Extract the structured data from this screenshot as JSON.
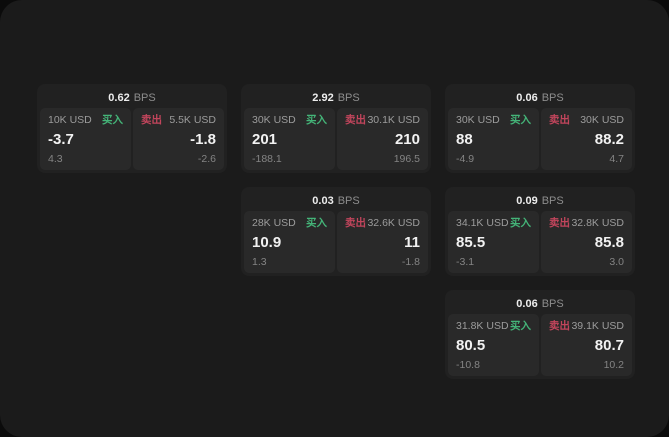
{
  "labels": {
    "bps_unit": "BPS",
    "buy": "买入",
    "sell": "卖出"
  },
  "colors": {
    "background": "#0b0b0b",
    "panel": "#1b1b1b",
    "card": "#212121",
    "tile": "#292929",
    "buy_accent": "#44b478",
    "sell_accent": "#c2455c",
    "primary_text": "#f2f2f2",
    "secondary_text": "#9c9c9c"
  },
  "cards": [
    {
      "bps": "0.62",
      "buy": {
        "notional": "10K USD",
        "price": "-3.7",
        "sub": "4.3"
      },
      "sell": {
        "notional": "5.5K USD",
        "price": "-1.8",
        "sub": "-2.6"
      }
    },
    {
      "bps": "2.92",
      "buy": {
        "notional": "30K USD",
        "price": "201",
        "sub": "-188.1"
      },
      "sell": {
        "notional": "30.1K USD",
        "price": "210",
        "sub": "196.5"
      }
    },
    {
      "bps": "0.06",
      "buy": {
        "notional": "30K USD",
        "price": "88",
        "sub": "-4.9"
      },
      "sell": {
        "notional": "30K USD",
        "price": "88.2",
        "sub": "4.7"
      }
    },
    {
      "bps": "0.03",
      "buy": {
        "notional": "28K USD",
        "price": "10.9",
        "sub": "1.3"
      },
      "sell": {
        "notional": "32.6K USD",
        "price": "11",
        "sub": "-1.8"
      }
    },
    {
      "bps": "0.09",
      "buy": {
        "notional": "34.1K USD",
        "price": "85.5",
        "sub": "-3.1"
      },
      "sell": {
        "notional": "32.8K USD",
        "price": "85.8",
        "sub": "3.0"
      }
    },
    {
      "bps": "0.06",
      "buy": {
        "notional": "31.8K USD",
        "price": "80.5",
        "sub": "-10.8"
      },
      "sell": {
        "notional": "39.1K USD",
        "price": "80.7",
        "sub": "10.2"
      }
    }
  ]
}
